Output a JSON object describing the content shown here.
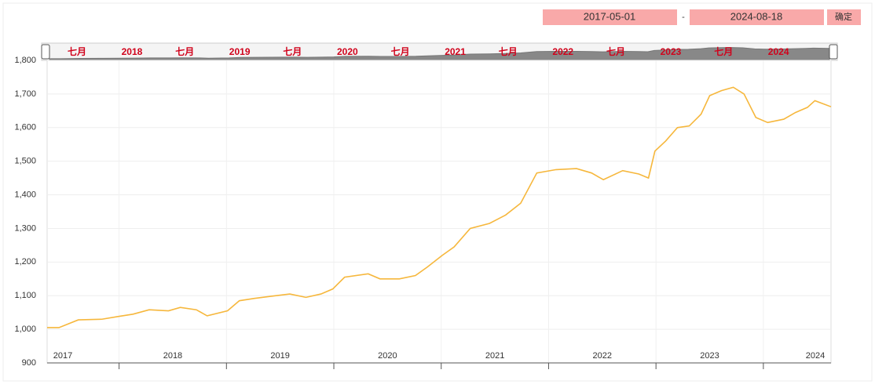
{
  "chart_data": {
    "type": "line",
    "range_start": "2017-05-01",
    "range_end": "2024-08-18",
    "confirm_button": "确定",
    "navigator_labels": [
      "七月",
      "2018",
      "七月",
      "2019",
      "七月",
      "2020",
      "七月",
      "2021",
      "七月",
      "2022",
      "七月",
      "2023",
      "七月",
      "2024"
    ],
    "x_labels": [
      2017,
      2018,
      2019,
      2020,
      2021,
      2022,
      2023,
      2024
    ],
    "x": [
      2017.33,
      2017.44,
      2017.62,
      2017.84,
      2017.99,
      2018.13,
      2018.28,
      2018.46,
      2018.57,
      2018.72,
      2018.82,
      2019.01,
      2019.12,
      2019.26,
      2019.41,
      2019.59,
      2019.74,
      2019.88,
      2019.99,
      2020.1,
      2020.32,
      2020.43,
      2020.61,
      2020.76,
      2020.87,
      2021.01,
      2021.12,
      2021.27,
      2021.45,
      2021.6,
      2021.74,
      2021.89,
      2022.07,
      2022.26,
      2022.4,
      2022.51,
      2022.69,
      2022.84,
      2022.93,
      2022.99,
      2023.09,
      2023.2,
      2023.31,
      2023.42,
      2023.5,
      2023.61,
      2023.72,
      2023.82,
      2023.93,
      2024.04,
      2024.19,
      2024.3,
      2024.41,
      2024.48,
      2024.63
    ],
    "series": [
      {
        "color": "#f6b73c",
        "values": [
          1005,
          1005,
          1028,
          1030,
          1038,
          1045,
          1058,
          1055,
          1065,
          1058,
          1040,
          1055,
          1085,
          1092,
          1098,
          1105,
          1095,
          1105,
          1120,
          1155,
          1165,
          1150,
          1150,
          1160,
          1185,
          1220,
          1245,
          1300,
          1315,
          1340,
          1375,
          1465,
          1475,
          1478,
          1465,
          1445,
          1472,
          1462,
          1450,
          1530,
          1560,
          1600,
          1605,
          1640,
          1695,
          1710,
          1720,
          1700,
          1630,
          1615,
          1625,
          1645,
          1660,
          1680,
          1662
        ]
      }
    ],
    "xlim": [
      2017.33,
      2024.63
    ],
    "ylim": [
      900,
      1800
    ],
    "yticks": [
      900,
      {
        "value": 1000,
        "label": "1,000"
      },
      {
        "value": 1100,
        "label": "1,100"
      },
      {
        "value": 1200,
        "label": "1,200"
      },
      {
        "value": 1300,
        "label": "1,300"
      },
      {
        "value": 1400,
        "label": "1,400"
      },
      {
        "value": 1500,
        "label": "1,500"
      },
      {
        "value": 1600,
        "label": "1,600"
      },
      {
        "value": 1700,
        "label": "1,700"
      },
      {
        "value": 1800,
        "label": "1,800"
      }
    ],
    "grid": true
  }
}
